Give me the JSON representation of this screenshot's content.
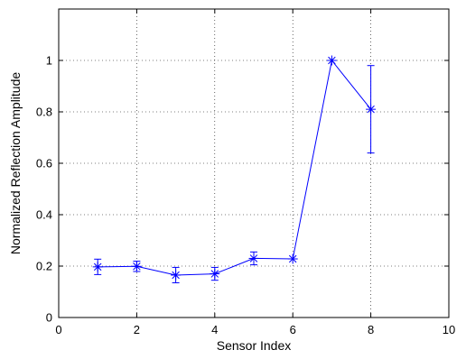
{
  "chart_data": {
    "type": "line",
    "title": "",
    "xlabel": "Sensor Index",
    "ylabel": "Normalized Reflection Amplitude",
    "xlim": [
      0,
      10
    ],
    "ylim": [
      0,
      1.2
    ],
    "grid": true,
    "grid_style": "dotted",
    "x_ticks": [
      0,
      2,
      4,
      6,
      8,
      10
    ],
    "x_tick_labels": [
      "0",
      "2",
      "4",
      "6",
      "8",
      "10"
    ],
    "y_ticks": [
      0,
      0.2,
      0.4,
      0.6,
      0.8,
      1.0
    ],
    "y_tick_labels": [
      "0",
      "0.2",
      "0.4",
      "0.6",
      "0.8",
      "1"
    ],
    "series": [
      {
        "marker": "asterisk",
        "color": "#0000ff",
        "x": [
          1,
          2,
          3,
          4,
          5,
          6,
          7,
          8
        ],
        "y": [
          0.197,
          0.199,
          0.165,
          0.17,
          0.23,
          0.228,
          1.0,
          0.81
        ],
        "error": [
          0.03,
          0.02,
          0.03,
          0.025,
          0.025,
          0.0,
          0.0,
          0.17
        ]
      }
    ]
  }
}
